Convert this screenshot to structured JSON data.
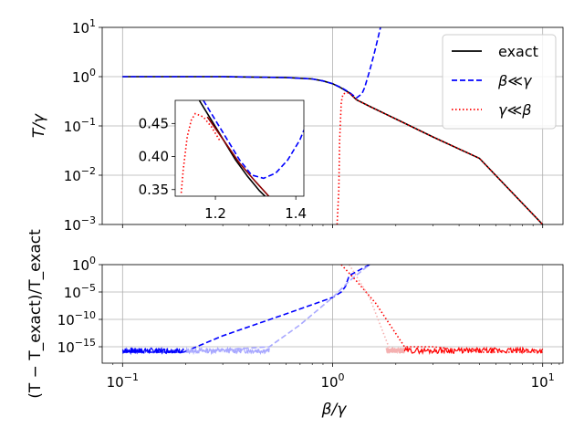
{
  "chart_data": [
    {
      "id": "main",
      "type": "line",
      "xscale": "log",
      "yscale": "log",
      "xlim": [
        0.08,
        12.5
      ],
      "ylim": [
        0.001,
        10
      ],
      "ylabel": "T/γ",
      "yticks": [
        {
          "value": 10,
          "base": "10",
          "exp": "1"
        },
        {
          "value": 1,
          "base": "10",
          "exp": "0"
        },
        {
          "value": 0.1,
          "base": "10",
          "exp": "−1"
        },
        {
          "value": 0.01,
          "base": "10",
          "exp": "−2"
        },
        {
          "value": 0.001,
          "base": "10",
          "exp": "−3"
        }
      ],
      "grid": true,
      "legend_position": "top-right",
      "series": [
        {
          "name": "exact",
          "style": "solid",
          "color": "#000000",
          "x": [
            0.1,
            0.3,
            0.6,
            0.8,
            0.9,
            1.0,
            1.1,
            1.2,
            1.3,
            1.5,
            2,
            3,
            5,
            10
          ],
          "y": [
            1.0,
            1.0,
            0.96,
            0.9,
            0.82,
            0.72,
            0.59,
            0.47,
            0.34,
            0.25,
            0.138,
            0.06,
            0.022,
            0.001
          ]
        },
        {
          "name": "β≪γ",
          "style": "dashed",
          "color": "#0000ff",
          "x": [
            0.1,
            0.3,
            0.6,
            0.8,
            0.9,
            1.0,
            1.1,
            1.2,
            1.3,
            1.38,
            1.42,
            1.5,
            1.58,
            1.65,
            1.7
          ],
          "y": [
            1.0,
            1.0,
            0.96,
            0.9,
            0.82,
            0.72,
            0.6,
            0.48,
            0.37,
            0.45,
            0.6,
            1.3,
            3.0,
            6.5,
            11
          ]
        },
        {
          "name": "γ≪β",
          "style": "dotted",
          "color": "#ff0000",
          "x": [
            1.05,
            1.07,
            1.08,
            1.1,
            1.12,
            1.15,
            1.2,
            1.3,
            1.5,
            2,
            3,
            5,
            10
          ],
          "y": [
            0.001,
            0.005,
            0.05,
            0.3,
            0.44,
            0.465,
            0.47,
            0.34,
            0.25,
            0.138,
            0.06,
            0.022,
            0.001
          ]
        }
      ]
    },
    {
      "id": "inset",
      "type": "line",
      "xlim": [
        1.1,
        1.42
      ],
      "ylim": [
        0.34,
        0.485
      ],
      "xticks": [
        1.2,
        1.4
      ],
      "xtick_labels": [
        "1.2",
        "1.4"
      ],
      "yticks": [
        0.35,
        0.4,
        0.45
      ],
      "ytick_labels": [
        "0.35",
        "0.40",
        "0.45"
      ],
      "series": [
        {
          "name": "exact",
          "style": "solid",
          "color": "#000000",
          "x": [
            1.16,
            1.19,
            1.22,
            1.25,
            1.28,
            1.31,
            1.34
          ],
          "y": [
            0.485,
            0.455,
            0.425,
            0.395,
            0.37,
            0.348,
            0.33
          ]
        },
        {
          "name": "exact (overlay)",
          "style": "solid",
          "color": "#8b0000",
          "x": [
            1.18,
            1.22,
            1.26,
            1.3,
            1.34
          ],
          "y": [
            0.46,
            0.425,
            0.39,
            0.362,
            0.335
          ]
        },
        {
          "name": "β≪γ",
          "style": "dashed",
          "color": "#0000ff",
          "x": [
            1.17,
            1.2,
            1.23,
            1.26,
            1.29,
            1.32,
            1.35,
            1.38,
            1.41,
            1.42
          ],
          "y": [
            0.485,
            0.455,
            0.425,
            0.395,
            0.372,
            0.367,
            0.375,
            0.395,
            0.425,
            0.44
          ]
        },
        {
          "name": "γ≪β",
          "style": "dotted",
          "color": "#ff0000",
          "x": [
            1.115,
            1.12,
            1.13,
            1.14,
            1.15,
            1.17,
            1.19,
            1.21
          ],
          "y": [
            0.345,
            0.38,
            0.43,
            0.455,
            0.465,
            0.46,
            0.445,
            0.425
          ]
        }
      ]
    },
    {
      "id": "residual",
      "type": "line",
      "xscale": "log",
      "yscale": "log",
      "xlim": [
        0.08,
        12.5
      ],
      "ylim": [
        1e-18,
        1
      ],
      "xlabel": "β/γ",
      "ylabel": "(T − T_exact)/T_exact",
      "xticks": [
        {
          "value": 0.1,
          "base": "10",
          "exp": "−1"
        },
        {
          "value": 1,
          "base": "10",
          "exp": "0"
        },
        {
          "value": 10,
          "base": "10",
          "exp": "1"
        }
      ],
      "yticks": [
        {
          "value": 1,
          "base": "10",
          "exp": "0"
        },
        {
          "value": 1e-05,
          "base": "10",
          "exp": "−5"
        },
        {
          "value": 1e-10,
          "base": "10",
          "exp": "−10"
        },
        {
          "value": 1e-15,
          "base": "10",
          "exp": "−15"
        }
      ],
      "grid": true,
      "series": [
        {
          "name": "β≪γ (noise)",
          "style": "dashed",
          "color": "#0000ff",
          "x": [
            0.1,
            0.195
          ],
          "y": [
            1e-16,
            1e-16
          ]
        },
        {
          "name": "β≪γ",
          "style": "dashed",
          "color": "#0000ff",
          "x": [
            0.195,
            0.3,
            0.6,
            1.0,
            1.1,
            1.15,
            1.2,
            1.5
          ],
          "y": [
            1e-16,
            1e-13,
            1e-09,
            1e-06,
            1e-05,
            0.0001,
            0.01,
            1
          ]
        },
        {
          "name": "β≪γ (light)",
          "style": "dashed",
          "color": "#a8a8ff",
          "x": [
            0.2,
            0.5,
            0.7,
            1.0,
            1.2,
            1.5
          ],
          "y": [
            1e-16,
            1e-15,
            1e-11,
            1e-06,
            0.001,
            1
          ]
        },
        {
          "name": "γ≪β",
          "style": "dotted",
          "color": "#ff0000",
          "x": [
            1.1,
            1.3,
            1.6,
            2.2,
            3,
            5,
            10
          ],
          "y": [
            1,
            0.001,
            1e-07,
            1e-15,
            1e-15,
            1e-16,
            1e-16
          ]
        },
        {
          "name": "γ≪β (light)",
          "style": "dotted",
          "color": "#f4b0b0",
          "x": [
            1.2,
            1.5,
            1.85,
            2.2
          ],
          "y": [
            1,
            1e-06,
            1e-15,
            1e-16
          ]
        }
      ]
    }
  ]
}
